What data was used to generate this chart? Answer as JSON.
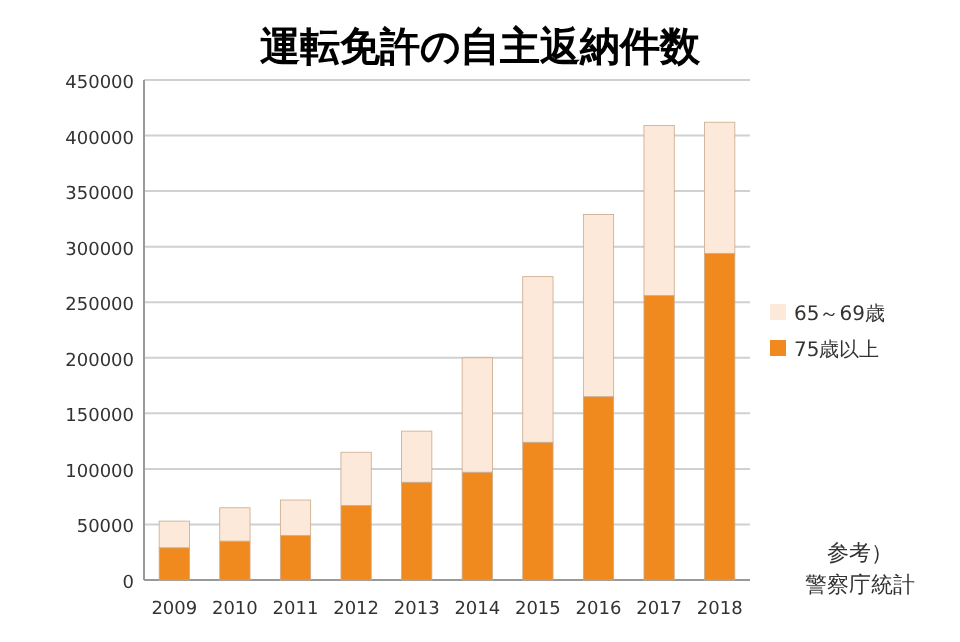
{
  "chart_data": {
    "type": "bar",
    "title": "運転免許の自主返納件数",
    "categories": [
      "2009",
      "2010",
      "2011",
      "2012",
      "2013",
      "2014",
      "2015",
      "2016",
      "2017",
      "2018"
    ],
    "stacked": true,
    "series": [
      {
        "name": "75歳以上",
        "color": "#f08a1e",
        "values": [
          29000,
          35000,
          40000,
          67000,
          88000,
          97000,
          124000,
          165000,
          256000,
          294000
        ]
      },
      {
        "name": "65～69歳",
        "color": "#fde9d9",
        "values": [
          24000,
          30000,
          32000,
          48000,
          46000,
          103000,
          149000,
          164000,
          153000,
          118000
        ]
      }
    ],
    "ylim": [
      0,
      450000
    ],
    "yticks": [
      0,
      50000,
      100000,
      150000,
      200000,
      250000,
      300000,
      350000,
      400000,
      450000
    ],
    "grid": "y",
    "legend": "right",
    "annotations": [
      "参考）",
      "警察庁統計"
    ]
  }
}
